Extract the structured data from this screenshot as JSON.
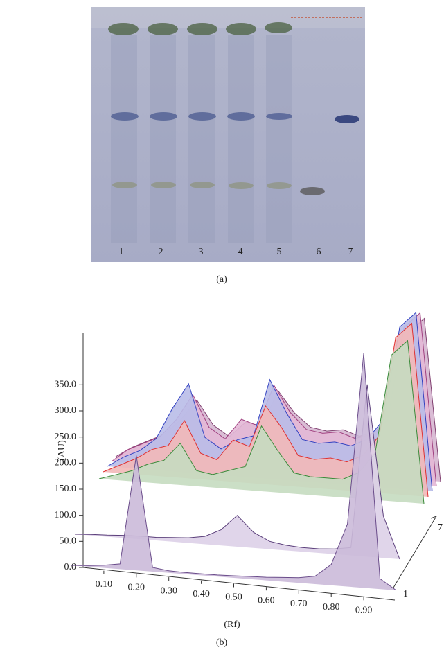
{
  "panel_a": {
    "lane_labels": [
      "1",
      "2",
      "3",
      "4",
      "5",
      "6",
      "7"
    ],
    "caption": "(a)"
  },
  "chart_data": {
    "type": "line",
    "caption": "(b)",
    "ylabel": "(AU)",
    "xlabel": "(Rf)",
    "z_labels": [
      "1",
      "7"
    ],
    "x": [
      0,
      0.05,
      0.1,
      0.15,
      0.2,
      0.25,
      0.3,
      0.35,
      0.4,
      0.45,
      0.5,
      0.55,
      0.6,
      0.65,
      0.7,
      0.75,
      0.8,
      0.85,
      0.9,
      0.95,
      1.0
    ],
    "xlim": [
      0,
      1.0
    ],
    "xticks": [
      {
        "value": 0.1,
        "label": "0.10"
      },
      {
        "value": 0.2,
        "label": "0.20"
      },
      {
        "value": 0.3,
        "label": "0.30"
      },
      {
        "value": 0.4,
        "label": "0.40"
      },
      {
        "value": 0.5,
        "label": "0.50"
      },
      {
        "value": 0.6,
        "label": "0.60"
      },
      {
        "value": 0.7,
        "label": "0.70"
      },
      {
        "value": 0.8,
        "label": "0.80"
      },
      {
        "value": 0.9,
        "label": "0.90"
      }
    ],
    "ylim": [
      0,
      450
    ],
    "yticks": [
      {
        "value": 0,
        "label": "0.0"
      },
      {
        "value": 50,
        "label": "50.0"
      },
      {
        "value": 100,
        "label": "100.0"
      },
      {
        "value": 150,
        "label": "150.0"
      },
      {
        "value": 200,
        "label": "200.0"
      },
      {
        "value": 250,
        "label": "250.0"
      },
      {
        "value": 300,
        "label": "300.0"
      },
      {
        "value": 350,
        "label": "350.0"
      }
    ],
    "series": [
      {
        "color": "#6a4c8a",
        "fill": "#cbbad9",
        "values": [
          0,
          2,
          5,
          10,
          220,
          8,
          4,
          3,
          3,
          3,
          4,
          5,
          6,
          8,
          10,
          15,
          40,
          120,
          450,
          20,
          0
        ]
      },
      {
        "color": "#5a3e7a",
        "fill": "#ddd0e8",
        "values": [
          0,
          2,
          3,
          5,
          6,
          6,
          8,
          10,
          15,
          30,
          60,
          30,
          15,
          10,
          8,
          8,
          10,
          15,
          330,
          80,
          0
        ]
      },
      {
        "color": "#3a8a3a",
        "fill": "#c5dcc0",
        "values": [
          0,
          10,
          20,
          35,
          45,
          80,
          30,
          25,
          35,
          45,
          125,
          80,
          40,
          35,
          35,
          35,
          50,
          90,
          280,
          310,
          0
        ]
      },
      {
        "color": "#e03030",
        "fill": "#f2b8b8",
        "values": [
          0,
          15,
          30,
          50,
          60,
          110,
          50,
          40,
          80,
          70,
          150,
          110,
          60,
          55,
          60,
          55,
          70,
          110,
          300,
          330,
          0
        ]
      },
      {
        "color": "#3040c0",
        "fill": "#b9bde8",
        "values": [
          0,
          20,
          35,
          60,
          120,
          170,
          70,
          50,
          70,
          80,
          190,
          130,
          80,
          75,
          80,
          75,
          90,
          130,
          310,
          340,
          0
        ]
      },
      {
        "color": "#a04080",
        "fill": "#e3b8d6",
        "values": [
          0,
          25,
          40,
          55,
          90,
          140,
          80,
          60,
          100,
          90,
          170,
          120,
          90,
          85,
          90,
          80,
          90,
          120,
          300,
          330,
          0
        ]
      },
      {
        "color": "#804070",
        "fill": "#d6b6d0",
        "values": [
          0,
          20,
          35,
          50,
          80,
          120,
          75,
          55,
          85,
          80,
          150,
          110,
          85,
          80,
          85,
          75,
          85,
          110,
          280,
          310,
          0
        ]
      }
    ]
  }
}
